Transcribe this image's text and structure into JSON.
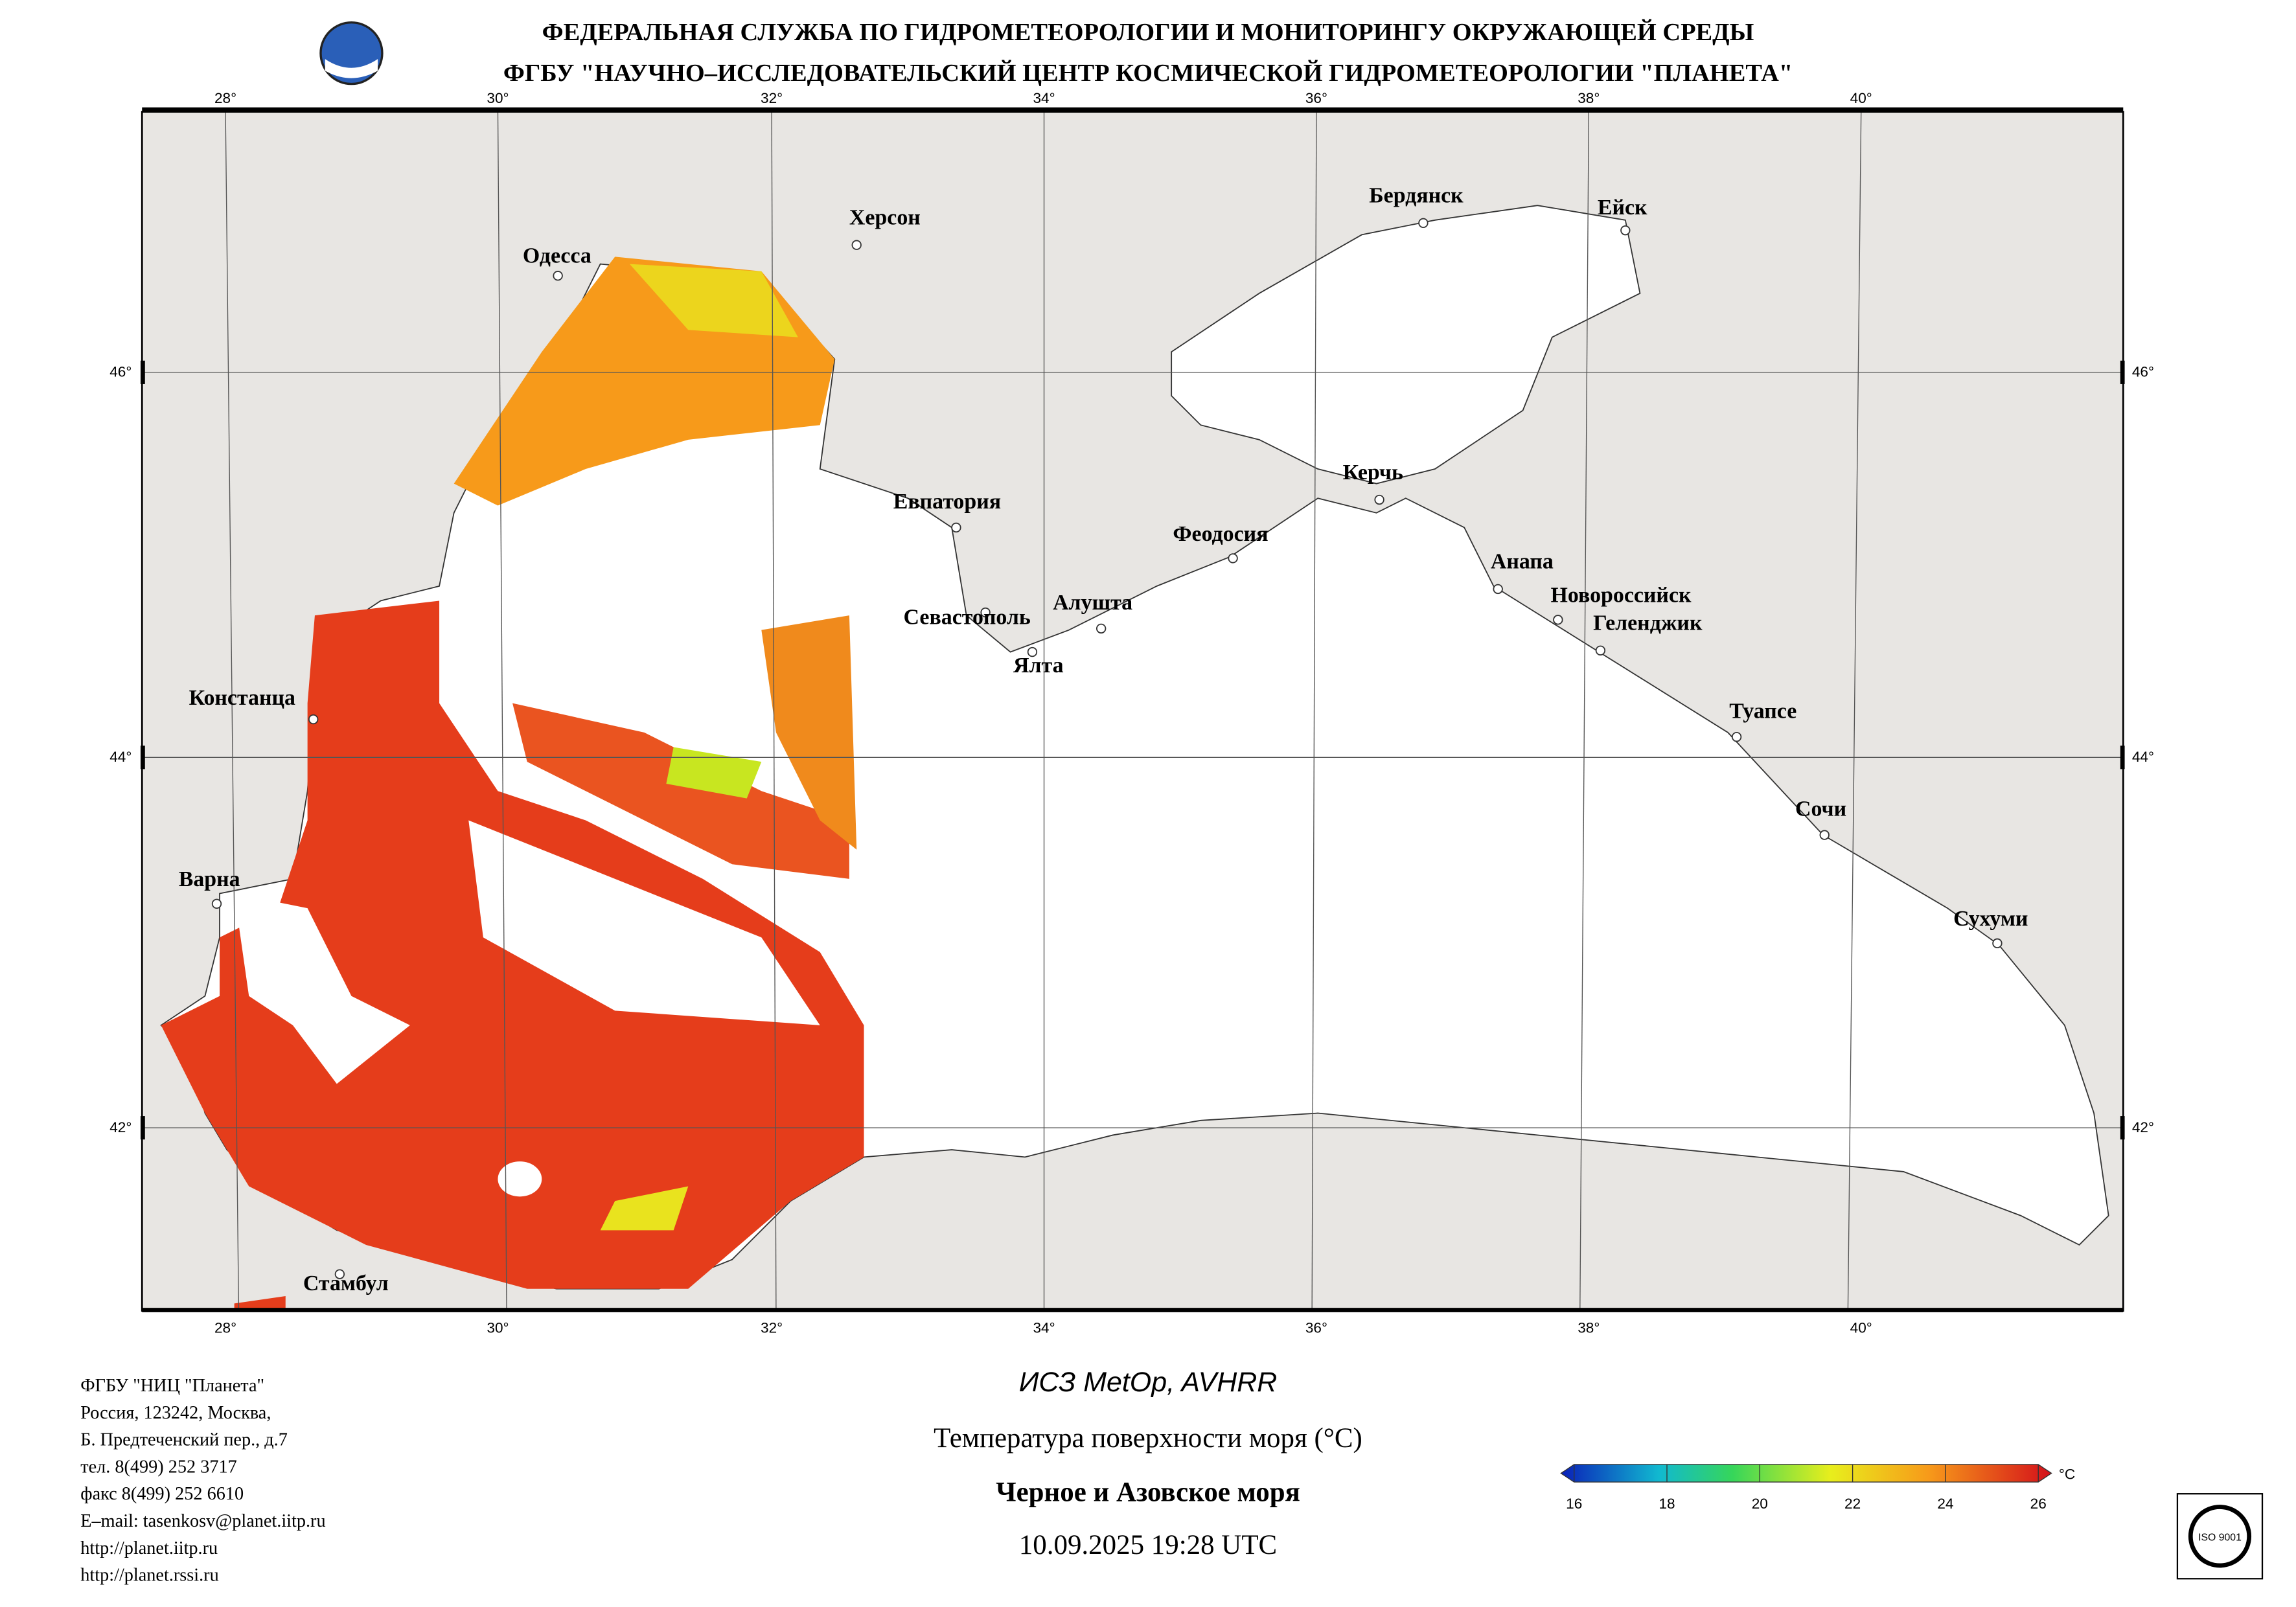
{
  "header": {
    "line1": "ФЕДЕРАЛЬНАЯ СЛУЖБА ПО ГИДРОМЕТЕОРОЛОГИИ И МОНИТОРИНГУ ОКРУЖАЮЩЕЙ СРЕДЫ",
    "line2": "ФГБУ \"НАУЧНО–ИССЛЕДОВАТЕЛЬСКИЙ ЦЕНТР КОСМИЧЕСКОЙ ГИДРОМЕТЕОРОЛОГИИ \"ПЛАНЕТА\""
  },
  "map": {
    "lon_labels": [
      "28°",
      "30°",
      "32°",
      "34°",
      "36°",
      "38°",
      "40°"
    ],
    "lat_labels": [
      "46°",
      "44°",
      "42°"
    ],
    "cities": [
      "Одесса",
      "Херсон",
      "Бердянск",
      "Ейск",
      "Евпатория",
      "Керчь",
      "Феодосия",
      "Анапа",
      "Новороссийск",
      "Геленджик",
      "Севастополь",
      "Алушта",
      "Ялта",
      "Констанца",
      "Туапсе",
      "Сочи",
      "Варна",
      "Сухуми",
      "Стамбул"
    ]
  },
  "footer": {
    "address": [
      "ФГБУ \"НИЦ \"Планета\"",
      "Россия, 123242, Москва,",
      "Б. Предтеченский пер., д.7",
      "тел. 8(499) 252 3717",
      "факс 8(499) 252 6610",
      "E–mail: tasenkosv@planet.iitp.ru",
      "http://planet.iitp.ru",
      "http://planet.rssi.ru"
    ],
    "satellite": "ИСЗ MetOp, AVHRR",
    "product": "Температура поверхности моря (°C)",
    "region": "Черное и Азовское моря",
    "datetime": "10.09.2025 19:28 UTC"
  },
  "colorbar": {
    "ticks": [
      16,
      18,
      20,
      22,
      24,
      26
    ],
    "unit": "°C"
  }
}
